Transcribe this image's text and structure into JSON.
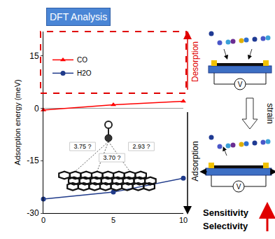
{
  "chart_data": {
    "type": "line",
    "title": "DFT Analysis",
    "y_label": "Adsorption energy (meV)",
    "x": [
      0,
      5,
      10
    ],
    "series": [
      {
        "name": "CO",
        "color": "#ff0000",
        "marker": "triangle-up",
        "values": [
          -0.5,
          1,
          2
        ]
      },
      {
        "name": "H2O",
        "color": "#1f3a8a",
        "marker": "circle",
        "values": [
          -26,
          -24,
          -20
        ]
      }
    ],
    "xlim": [
      0,
      10
    ],
    "xticks": [
      0,
      5,
      10
    ],
    "ylim": [
      -30,
      22
    ],
    "yticks": [
      -30,
      -15,
      0,
      15
    ],
    "grid": false,
    "legend": "upper left",
    "annotations": [
      "Desorption",
      "Adsorption",
      "3.75 ?",
      "3.70 ?",
      "2.93 ?"
    ]
  },
  "diagram": {
    "sensor_labels": [
      "V",
      "V"
    ],
    "arrow_label": "strain",
    "outcomes": [
      "Sensitivity",
      "Selectivity"
    ]
  }
}
